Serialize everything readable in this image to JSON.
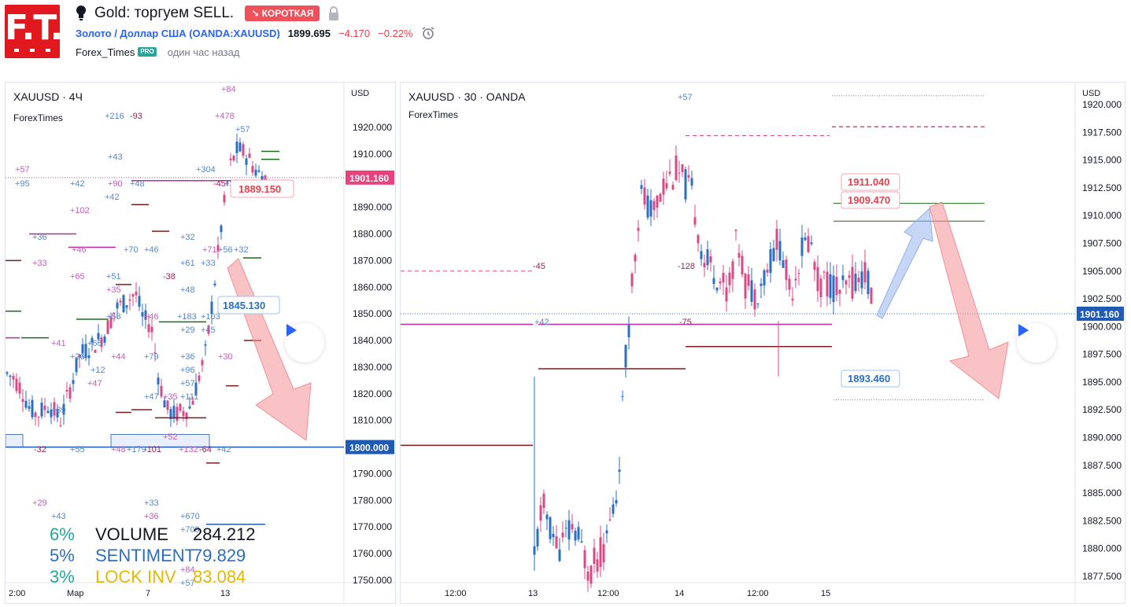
{
  "header": {
    "logo_text": "F.T.",
    "title": "Gold: торгуем SELL.",
    "badge": "↘ КОРОТКАЯ",
    "symbol_name": "Золото / Доллар США (OANDA:XAUUSD)",
    "price": "1899.695",
    "change": "−4.170",
    "change_pct": "−0.22%",
    "author": "Forex_Times",
    "pro_badge": "PRO",
    "time_ago": "один час назад",
    "icons": [
      "bulb-icon",
      "lock-icon",
      "alarm-icon"
    ]
  },
  "colors": {
    "up": "#2a6fc4",
    "down": "#d84a86",
    "accent_red": "#e8414e",
    "grid_border": "#e0e3eb",
    "level_dark": "#7a1c1c",
    "level_magenta": "#b52e9b",
    "level_green": "#1b6b1b",
    "level_blue": "#1f5ab4"
  },
  "left_chart": {
    "title": "XAUUSD · 4Ч",
    "subtitle": "ForexTimes",
    "currency": "USD",
    "y_ticks": [
      "1920.000",
      "1910.000",
      "1900.000",
      "1890.000",
      "1880.000",
      "1870.000",
      "1860.000",
      "1850.000",
      "1840.000",
      "1830.000",
      "1820.000",
      "1810.000",
      "1800.000",
      "1790.000",
      "1780.000",
      "1770.000",
      "1760.000",
      "1750.000"
    ],
    "x_ticks": [
      "2:00",
      "Мар",
      "7",
      "13"
    ],
    "price_label": "1901.160",
    "level_label": "1800.000",
    "callout_red": "1889.150",
    "callout_blue": "1845.130",
    "delta_labels": [
      "+84",
      "+216",
      "-93",
      "+478",
      "+57",
      "+43",
      "+57",
      "+95",
      "+42",
      "+90",
      "+48",
      "+304",
      "-45",
      "+270",
      "+42",
      "+102",
      "+32",
      "+36",
      "+46",
      "+70",
      "+46",
      "+71",
      "+56",
      "+32",
      "+33",
      "+61",
      "+33",
      "+65",
      "+51",
      "-38",
      "+35",
      "+48",
      "+58",
      "+46",
      "+183",
      "+103",
      "+54",
      "+29",
      "+45",
      "+41",
      "+66",
      "+26",
      "+44",
      "+79",
      "+36",
      "+30",
      "+12",
      "+96",
      "+47",
      "+57",
      "+47",
      "+35",
      "+111",
      "+39",
      "+52",
      "-32",
      "+55",
      "+48",
      "+179",
      "-101",
      "+132",
      "-64",
      "+42",
      "+29",
      "+43",
      "+33",
      "+36",
      "+670",
      "+709",
      "+84",
      "+57"
    ],
    "stats": [
      {
        "pct": "6%",
        "label": "VOLUME",
        "value": "284.212"
      },
      {
        "pct": "5%",
        "label": "SENTIMENT",
        "value": "79.829"
      },
      {
        "pct": "3%",
        "label": "LOCK INV",
        "value": "83.084"
      }
    ]
  },
  "right_chart": {
    "title": "XAUUSD · 30 · OANDA",
    "subtitle": "ForexTimes",
    "currency": "USD",
    "y_ticks": [
      "1920.000",
      "1917.500",
      "1915.000",
      "1912.500",
      "1910.000",
      "1907.500",
      "1905.000",
      "1902.500",
      "1900.000",
      "1897.500",
      "1895.000",
      "1892.500",
      "1890.000",
      "1887.500",
      "1885.000",
      "1882.500",
      "1880.000",
      "1877.500"
    ],
    "x_ticks": [
      "12:00",
      "13",
      "12:00",
      "14",
      "12:00",
      "15"
    ],
    "price_label": "1901.160",
    "callouts": [
      "1911.040",
      "1909.470",
      "1893.460"
    ],
    "delta_labels": [
      "+57",
      "-45",
      "-128",
      "+42",
      "-75"
    ]
  }
}
